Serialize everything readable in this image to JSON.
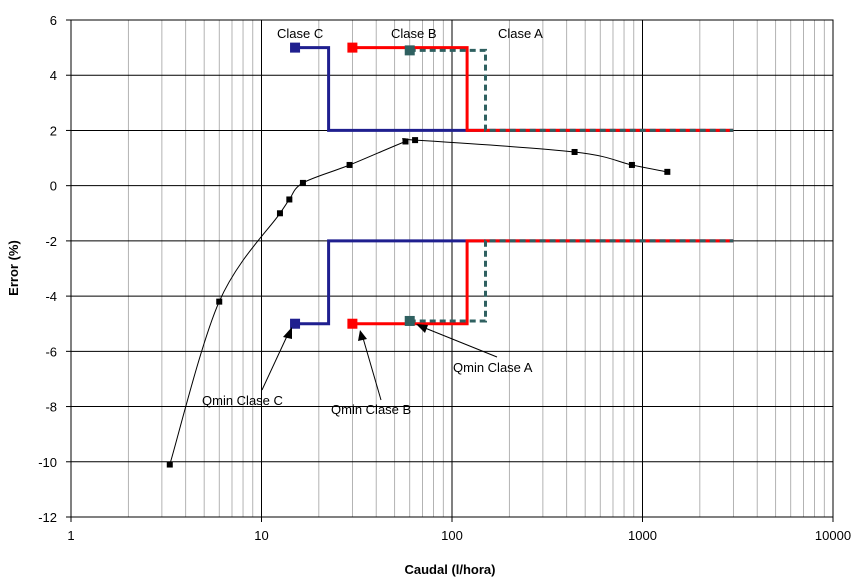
{
  "chart_data": {
    "type": "line",
    "xlabel": "Caudal (l/hora)",
    "ylabel": "Error (%)",
    "xscale": "log",
    "xlim": [
      1,
      10000
    ],
    "ylim": [
      -12,
      6
    ],
    "yticks": [
      6,
      4,
      2,
      0,
      -2,
      -4,
      -6,
      -8,
      -10,
      -12
    ],
    "xticks": [
      1,
      10,
      100,
      1000,
      10000
    ],
    "xtick_labels": [
      "1",
      "10",
      "100",
      "1000",
      "10000"
    ],
    "grid": true,
    "legend": "none",
    "series": [
      {
        "role": "meter curve",
        "color": "#000000",
        "marker": "square",
        "x": [
          3.3,
          6,
          12.5,
          14,
          16.5,
          29,
          57,
          64,
          440,
          880,
          1350
        ],
        "y": [
          -10.1,
          -4.2,
          -1.0,
          -0.5,
          0.1,
          0.75,
          1.6,
          1.65,
          1.22,
          0.75,
          0.5
        ]
      },
      {
        "role": "class C limits",
        "color": "#1F1F8F",
        "style": "solid",
        "upper": {
          "x": [
            15,
            22.5,
            22.5,
            3000
          ],
          "y": [
            5,
            5,
            2,
            2
          ]
        },
        "lower": {
          "x": [
            15,
            22.5,
            22.5,
            3000
          ],
          "y": [
            -5,
            -5,
            -2,
            -2
          ]
        },
        "qmin_marker": {
          "x": 15
        }
      },
      {
        "role": "class B limits",
        "color": "#FF0000",
        "style": "solid",
        "upper": {
          "x": [
            30,
            120,
            120,
            3000
          ],
          "y": [
            5,
            5,
            2,
            2
          ]
        },
        "lower": {
          "x": [
            30,
            120,
            120,
            3000
          ],
          "y": [
            -5,
            -5,
            -2,
            -2
          ]
        },
        "qmin_marker": {
          "x": 30
        }
      },
      {
        "role": "class A limits",
        "color": "#2F6060",
        "style": "dashed",
        "upper": {
          "x": [
            60,
            150,
            150,
            3000
          ],
          "y": [
            4.9,
            4.9,
            2,
            2
          ]
        },
        "lower": {
          "x": [
            60,
            150,
            150,
            3000
          ],
          "y": [
            -4.9,
            -4.9,
            -2,
            -2
          ]
        },
        "qmin_marker": {
          "x": 60
        }
      }
    ],
    "annotations": {
      "clase_c": "Clase C",
      "clase_b": "Clase B",
      "clase_a": "Clase A",
      "qmin_c": "Qmin Clase C",
      "qmin_b": "Qmin Clase B",
      "qmin_a": "Qmin Clase A"
    }
  }
}
